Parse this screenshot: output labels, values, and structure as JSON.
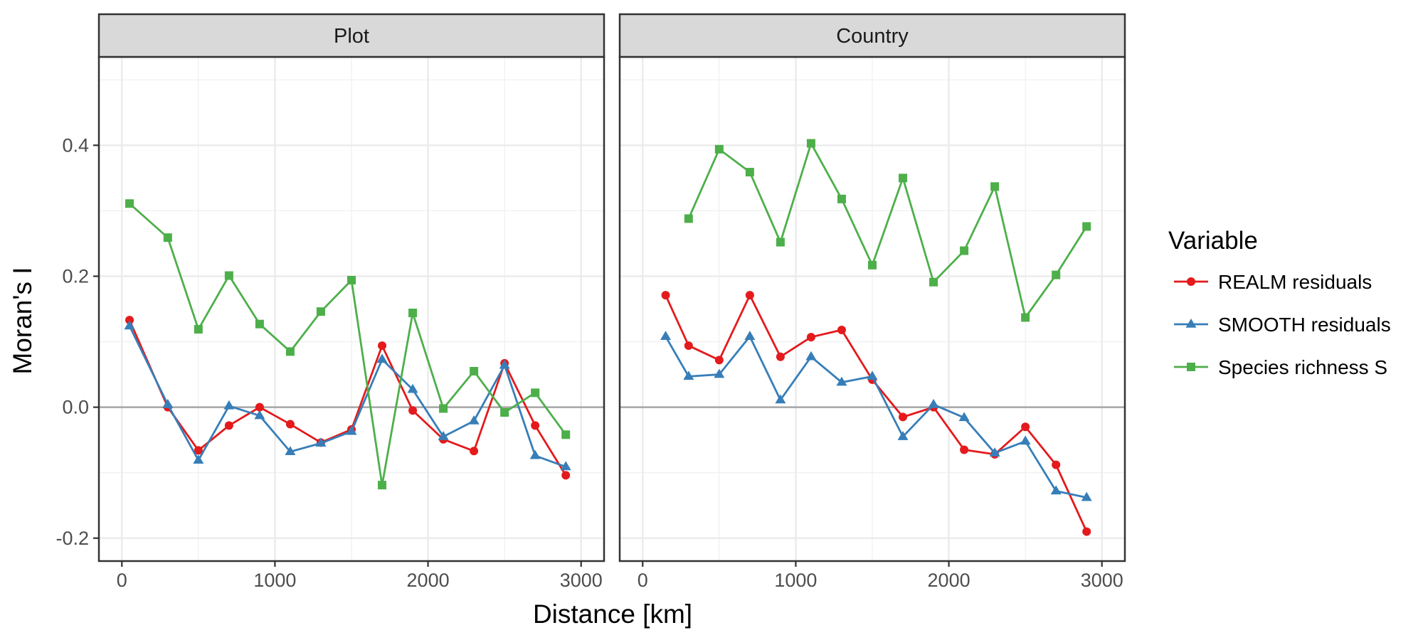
{
  "chart_data": {
    "type": "line",
    "facet_by": "panel",
    "xlabel": "Distance [km]",
    "ylabel": "Moran's I",
    "xlim": [
      -150,
      3150
    ],
    "ylim": [
      -0.235,
      0.535
    ],
    "x_ticks": [
      0,
      1000,
      2000,
      3000
    ],
    "y_ticks": [
      -0.2,
      0.0,
      0.2,
      0.4
    ],
    "x_tick_labels": [
      "0",
      "1000",
      "2000",
      "3000"
    ],
    "y_tick_labels": [
      "-0.2",
      "0.0",
      "0.2",
      "0.4"
    ],
    "reference_line": 0,
    "grid": true,
    "legend": {
      "title": "Variable",
      "position": "right",
      "entries": [
        {
          "label": "REALM residuals",
          "color": "#E41A1C",
          "shape": "circle"
        },
        {
          "label": "SMOOTH residuals",
          "color": "#377EB8",
          "shape": "triangle"
        },
        {
          "label": "Species richness S",
          "color": "#4DAF4A",
          "shape": "square"
        }
      ]
    },
    "panels": [
      {
        "title": "Plot",
        "series": [
          {
            "name": "REALM residuals",
            "x": [
              50,
              300,
              500,
              700,
              900,
              1100,
              1300,
              1500,
              1700,
              1900,
              2100,
              2300,
              2500,
              2700,
              2900
            ],
            "y": [
              0.133,
              0.0,
              -0.066,
              -0.028,
              0.0,
              -0.026,
              -0.054,
              -0.034,
              0.094,
              -0.005,
              -0.049,
              -0.067,
              0.067,
              -0.028,
              -0.104
            ]
          },
          {
            "name": "SMOOTH residuals",
            "x": [
              50,
              300,
              500,
              700,
              900,
              1100,
              1300,
              1500,
              1700,
              1900,
              2100,
              2300,
              2500,
              2700,
              2900
            ],
            "y": [
              0.124,
              0.004,
              -0.081,
              0.002,
              -0.013,
              -0.068,
              -0.055,
              -0.037,
              0.073,
              0.027,
              -0.045,
              -0.021,
              0.064,
              -0.074,
              -0.091
            ]
          },
          {
            "name": "Species richness S",
            "x": [
              50,
              300,
              500,
              700,
              900,
              1100,
              1300,
              1500,
              1700,
              1900,
              2100,
              2300,
              2500,
              2700,
              2900
            ],
            "y": [
              0.311,
              0.259,
              0.119,
              0.201,
              0.127,
              0.085,
              0.146,
              0.194,
              -0.119,
              0.144,
              -0.002,
              0.055,
              -0.008,
              0.022,
              -0.042
            ]
          }
        ]
      },
      {
        "title": "Country",
        "series": [
          {
            "name": "REALM residuals",
            "x": [
              150,
              300,
              500,
              700,
              900,
              1100,
              1300,
              1500,
              1700,
              1900,
              2100,
              2300,
              2500,
              2700,
              2900
            ],
            "y": [
              0.171,
              0.094,
              0.072,
              0.171,
              0.077,
              0.107,
              0.118,
              0.042,
              -0.015,
              0.0,
              -0.065,
              -0.072,
              -0.03,
              -0.088,
              -0.19
            ]
          },
          {
            "name": "SMOOTH residuals",
            "x": [
              150,
              300,
              500,
              700,
              900,
              1100,
              1300,
              1500,
              1700,
              1900,
              2100,
              2300,
              2500,
              2700,
              2900
            ],
            "y": [
              0.108,
              0.047,
              0.05,
              0.108,
              0.011,
              0.077,
              0.038,
              0.047,
              -0.045,
              0.004,
              -0.016,
              -0.07,
              -0.052,
              -0.128,
              -0.138
            ]
          },
          {
            "name": "Species richness S",
            "x": [
              150,
              300,
              500,
              700,
              900,
              1100,
              1300,
              1500,
              1700,
              1900,
              2100,
              2300,
              2500,
              2700,
              2900
            ],
            "y": [
              null,
              0.288,
              0.394,
              0.359,
              0.252,
              0.403,
              0.318,
              0.217,
              0.35,
              0.191,
              0.239,
              0.337,
              0.137,
              0.202,
              0.276
            ]
          }
        ]
      }
    ]
  }
}
